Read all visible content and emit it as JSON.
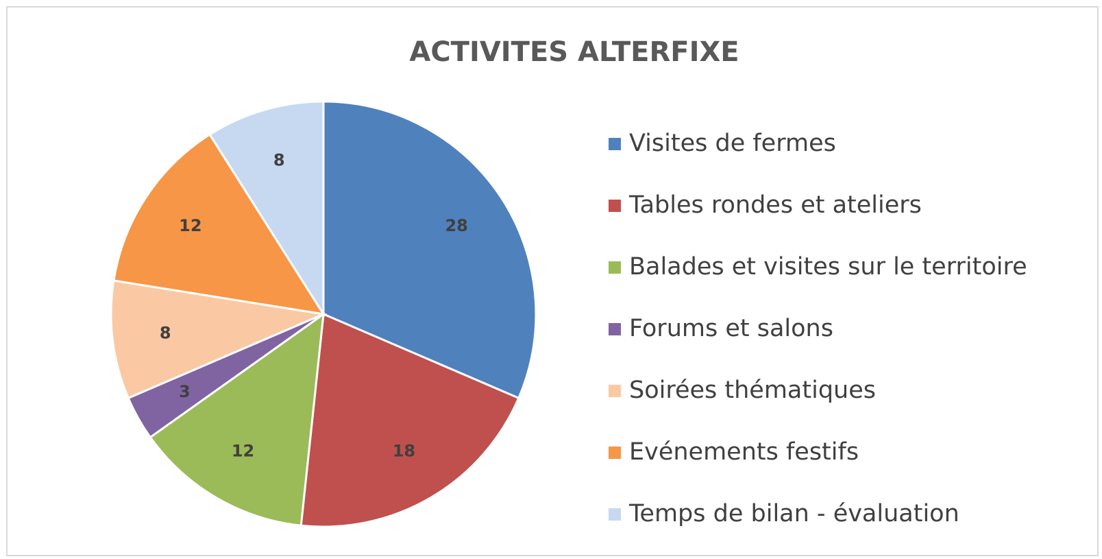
{
  "chart_data": {
    "type": "pie",
    "title": "ACTIVITES ALTERFIXE",
    "categories": [
      "Visites de fermes",
      "Tables rondes et ateliers",
      "Balades et visites sur le territoire",
      "Forums et salons",
      "Soirées thématiques",
      "Evénements festifs",
      "Temps de bilan - évaluation"
    ],
    "values": [
      28,
      18,
      12,
      3,
      8,
      12,
      8
    ],
    "colors": [
      "#4f81bd",
      "#c0504d",
      "#9bbb59",
      "#8064a2",
      "#fac9a3",
      "#f79646",
      "#c6d9f1"
    ],
    "legend": "right"
  }
}
